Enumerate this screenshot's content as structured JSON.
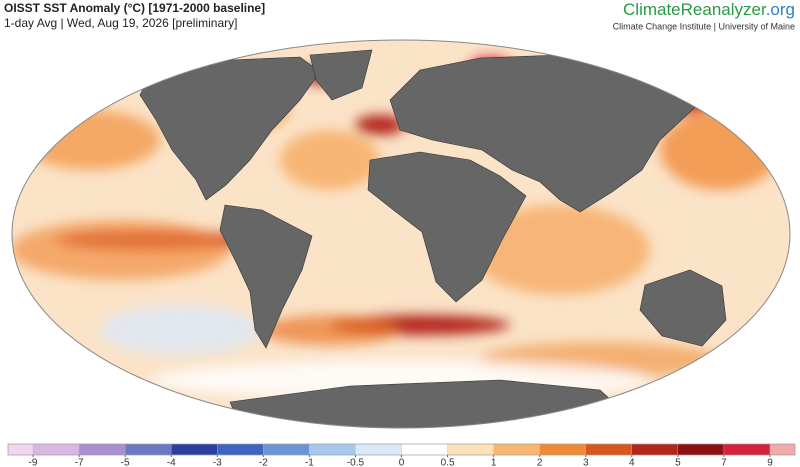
{
  "header": {
    "title": "OISST SST Anomaly (°C) [1971-2000 baseline]",
    "subtitle": "1-day Avg | Wed, Aug 19, 2026 [preliminary]"
  },
  "logo": {
    "name": "ClimateReanalyzer",
    "suffix": ".org",
    "tagline": "Climate Change Institute | University of Maine"
  },
  "colorbar": {
    "ticks": [
      -9,
      -7,
      -5,
      -4,
      -3,
      -2,
      -1,
      -0.5,
      0,
      0.5,
      1,
      2,
      3,
      4,
      5,
      7,
      9
    ],
    "colors": [
      "#f3d6ee",
      "#d9b6e3",
      "#a98fd0",
      "#6a78c4",
      "#2b3fa0",
      "#3e63c0",
      "#6b94d6",
      "#a7c8ec",
      "#d9ebfa",
      "#ffffff",
      "#fde0b9",
      "#f9b66e",
      "#ef8a34",
      "#d9561c",
      "#b3261a",
      "#8c1010",
      "#d4203a",
      "#f1a9a9"
    ]
  }
}
